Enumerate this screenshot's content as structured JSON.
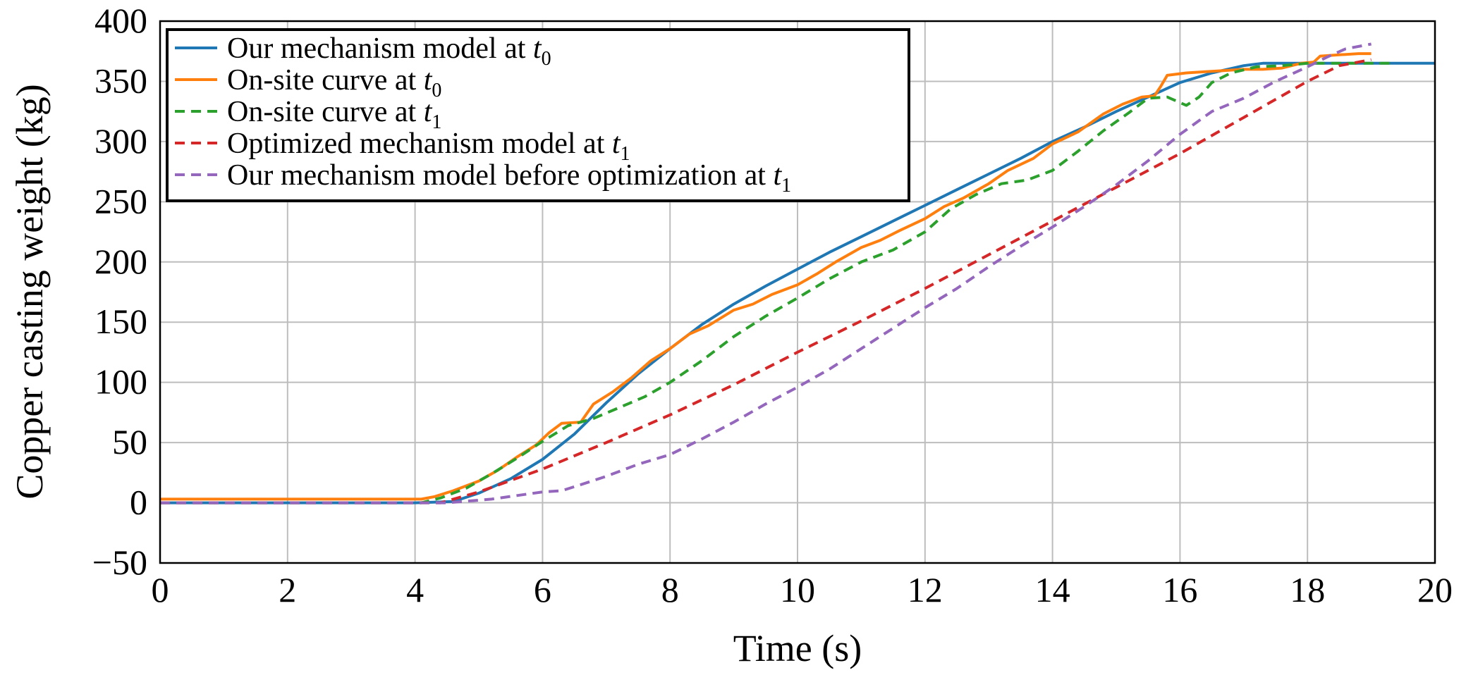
{
  "chart_data": {
    "type": "line",
    "xlabel": "Time (s)",
    "ylabel": "Copper casting weight (kg)",
    "xlim": [
      0,
      20
    ],
    "ylim": [
      -50,
      400
    ],
    "xticks": [
      "0",
      "2",
      "4",
      "6",
      "8",
      "10",
      "12",
      "14",
      "16",
      "18",
      "20"
    ],
    "yticks": [
      "−50",
      "0",
      "50",
      "100",
      "150",
      "200",
      "250",
      "300",
      "350",
      "400"
    ],
    "grid": true,
    "legend_position": "top-left",
    "series": [
      {
        "label": "Our mechanism model at ",
        "var": "t",
        "sub": "0",
        "color": "#1f77b4",
        "dash": "solid",
        "x": [
          0,
          4.0,
          4.6,
          5.0,
          5.5,
          6.0,
          6.5,
          7.0,
          7.5,
          8.0,
          8.5,
          9.0,
          9.5,
          10.0,
          10.5,
          11.0,
          11.5,
          12.0,
          12.5,
          13.0,
          13.5,
          14.0,
          14.5,
          15.0,
          15.5,
          16.0,
          16.5,
          17.0,
          17.3,
          18.0,
          20.0
        ],
        "y": [
          0,
          0,
          1,
          8,
          20,
          36,
          57,
          83,
          107,
          128,
          148,
          165,
          180,
          194,
          208,
          221,
          234,
          247,
          260,
          273,
          286,
          300,
          312,
          325,
          337,
          349,
          357,
          363,
          365,
          365,
          365
        ]
      },
      {
        "label": "On-site curve at ",
        "var": "t",
        "sub": "0",
        "color": "#ff7f0e",
        "dash": "solid",
        "x": [
          0,
          4.1,
          4.3,
          4.6,
          5.0,
          5.3,
          5.6,
          5.9,
          6.1,
          6.3,
          6.6,
          6.8,
          7.1,
          7.4,
          7.7,
          8.0,
          8.3,
          8.6,
          9.0,
          9.3,
          9.6,
          10.0,
          10.3,
          10.6,
          11.0,
          11.3,
          11.6,
          12.0,
          12.3,
          12.6,
          13.0,
          13.3,
          13.7,
          14.0,
          14.4,
          14.8,
          15.1,
          15.4,
          15.6,
          15.7,
          15.8,
          16.1,
          16.4,
          16.7,
          17.0,
          17.3,
          17.6,
          17.9,
          18.1,
          18.2,
          18.5,
          18.8,
          19.0
        ],
        "y": [
          3,
          3,
          5,
          10,
          18,
          27,
          38,
          48,
          58,
          66,
          67,
          82,
          92,
          104,
          118,
          128,
          140,
          147,
          160,
          165,
          173,
          181,
          190,
          200,
          212,
          218,
          226,
          236,
          246,
          253,
          265,
          276,
          286,
          298,
          308,
          323,
          331,
          337,
          338,
          346,
          355,
          357,
          358,
          359,
          360,
          360,
          361,
          365,
          366,
          371,
          372,
          373,
          373
        ]
      },
      {
        "label": "On-site curve at ",
        "var": "t",
        "sub": "1",
        "color": "#2ca02c",
        "dash": "dashed",
        "x": [
          0,
          4.1,
          4.4,
          4.8,
          5.2,
          5.6,
          6.0,
          6.4,
          6.8,
          7.2,
          7.6,
          8.0,
          8.5,
          9.0,
          9.5,
          10.0,
          10.5,
          11.0,
          11.5,
          12.0,
          12.4,
          12.8,
          13.2,
          13.6,
          14.0,
          14.4,
          14.8,
          15.2,
          15.5,
          15.8,
          16.1,
          16.3,
          16.5,
          16.8,
          17.2,
          17.6,
          18.0,
          18.5,
          19.0,
          19.3
        ],
        "y": [
          0,
          0,
          4,
          12,
          24,
          37,
          51,
          64,
          70,
          79,
          88,
          100,
          118,
          138,
          155,
          170,
          186,
          200,
          210,
          225,
          244,
          256,
          265,
          268,
          276,
          292,
          309,
          324,
          336,
          337,
          330,
          337,
          349,
          357,
          362,
          363,
          365,
          365,
          365,
          365
        ]
      },
      {
        "label": "Optimized mechanism model at ",
        "var": "t",
        "sub": "1",
        "color": "#d62728",
        "dash": "dashed",
        "x": [
          0,
          4.4,
          5.0,
          6.0,
          7.0,
          8.0,
          9.0,
          10.0,
          11.0,
          12.0,
          13.0,
          14.0,
          15.0,
          16.0,
          17.0,
          18.0,
          18.5,
          19.0
        ],
        "y": [
          0,
          0,
          9,
          28,
          50,
          73,
          98,
          125,
          151,
          178,
          206,
          234,
          262,
          290,
          320,
          350,
          363,
          368
        ]
      },
      {
        "label": "Our mechanism model before optimization at ",
        "var": "t",
        "sub": "1",
        "color": "#9467bd",
        "dash": "dashed",
        "x": [
          0,
          4.5,
          5.2,
          5.6,
          6.0,
          6.3,
          6.6,
          7.0,
          7.5,
          8.0,
          8.5,
          9.0,
          9.5,
          10.0,
          10.5,
          11.0,
          11.5,
          12.0,
          12.5,
          13.0,
          13.5,
          14.0,
          14.5,
          15.0,
          15.5,
          16.0,
          16.5,
          17.0,
          17.5,
          18.0,
          18.3,
          18.6,
          19.0
        ],
        "y": [
          0,
          0,
          3,
          6,
          9,
          10,
          15,
          22,
          32,
          40,
          53,
          67,
          82,
          96,
          111,
          128,
          145,
          162,
          178,
          196,
          213,
          229,
          246,
          264,
          284,
          306,
          325,
          336,
          350,
          362,
          370,
          377,
          381
        ]
      }
    ]
  }
}
